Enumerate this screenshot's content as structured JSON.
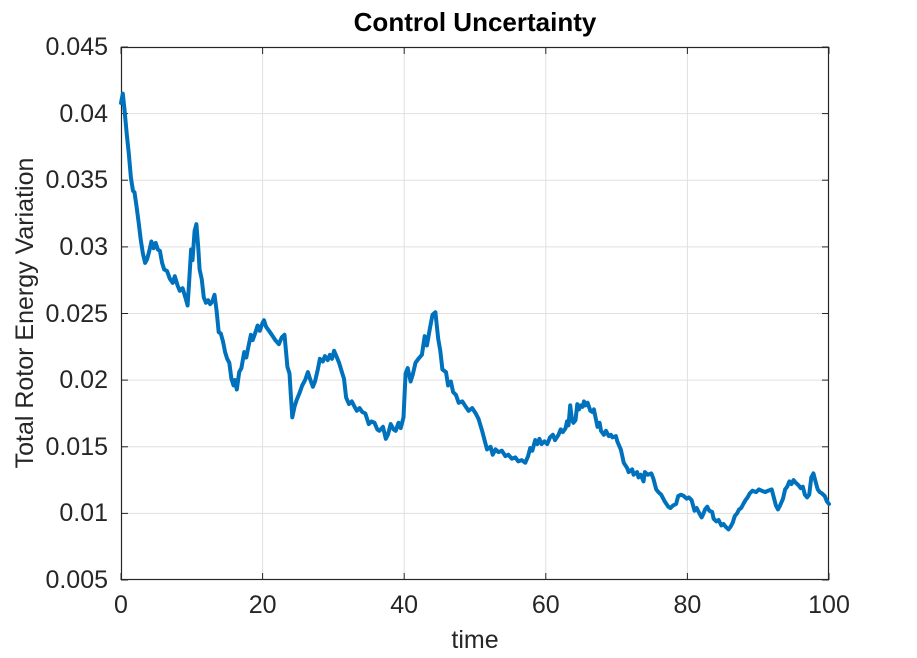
{
  "chart_data": {
    "type": "line",
    "title": "Control Uncertainty",
    "xlabel": "time",
    "ylabel": "Total Rotor Energy Variation",
    "xlim": [
      0,
      100
    ],
    "ylim": [
      0.005,
      0.045
    ],
    "xticks": [
      0,
      20,
      40,
      60,
      80,
      100
    ],
    "xtick_labels": [
      "0",
      "20",
      "40",
      "60",
      "80",
      "100"
    ],
    "yticks": [
      0.005,
      0.01,
      0.015,
      0.02,
      0.025,
      0.03,
      0.035,
      0.04,
      0.045
    ],
    "ytick_labels": [
      "0.005",
      "0.01",
      "0.015",
      "0.02",
      "0.025",
      "0.03",
      "0.035",
      "0.04",
      "0.045"
    ],
    "grid": true,
    "legend": "none",
    "line_color": "#0072BD",
    "grid_color": "#e0e0e0",
    "axes_color": "#262626",
    "x": [
      0,
      0.25,
      0.5,
      0.8,
      1.1,
      1.4,
      1.7,
      1.9,
      2.2,
      2.5,
      2.8,
      3.1,
      3.4,
      3.7,
      4.0,
      4.3,
      4.6,
      4.9,
      5.2,
      5.5,
      5.8,
      6.1,
      6.5,
      6.9,
      7.3,
      7.6,
      8.0,
      8.3,
      8.7,
      9.1,
      9.4,
      9.6,
      9.9,
      10.1,
      10.4,
      10.65,
      10.9,
      11.1,
      11.4,
      11.7,
      12.0,
      12.3,
      12.6,
      12.9,
      13.2,
      13.5,
      13.8,
      14.1,
      14.4,
      14.7,
      15.0,
      15.3,
      15.6,
      15.9,
      16.1,
      16.35,
      16.7,
      17.0,
      17.4,
      17.7,
      17.95,
      18.35,
      18.6,
      19.0,
      19.3,
      19.6,
      20.0,
      20.2,
      20.5,
      20.9,
      21.3,
      21.8,
      22.3,
      22.7,
      23.1,
      23.5,
      23.8,
      24.0,
      24.2,
      24.5,
      24.8,
      25.2,
      25.6,
      26.0,
      26.4,
      26.7,
      27.1,
      27.4,
      27.8,
      28.1,
      28.5,
      28.8,
      29.2,
      29.5,
      29.8,
      30.1,
      30.5,
      30.8,
      31.2,
      31.5,
      31.8,
      32.2,
      32.6,
      33.0,
      33.3,
      33.7,
      34.1,
      34.5,
      35.0,
      35.4,
      35.8,
      36.2,
      36.5,
      37.0,
      37.4,
      37.7,
      38.1,
      38.5,
      38.8,
      39.2,
      39.5,
      39.9,
      40.2,
      40.5,
      40.9,
      41.2,
      41.6,
      42.0,
      42.5,
      42.9,
      43.2,
      43.6,
      44.0,
      44.4,
      44.8,
      45.1,
      45.4,
      45.9,
      46.2,
      46.6,
      46.9,
      47.3,
      47.7,
      48.2,
      48.7,
      49.1,
      49.6,
      50.1,
      50.5,
      51.0,
      51.3,
      51.7,
      52.2,
      52.5,
      52.9,
      53.3,
      53.8,
      54.3,
      54.7,
      55.2,
      55.7,
      56.1,
      56.6,
      57.1,
      57.5,
      57.8,
      58.1,
      58.5,
      58.8,
      59.1,
      59.4,
      59.8,
      60.2,
      60.6,
      61.0,
      61.3,
      61.8,
      62.1,
      62.4,
      62.8,
      63.0,
      63.2,
      63.45,
      63.7,
      63.9,
      64.2,
      64.45,
      64.7,
      64.9,
      65.2,
      65.4,
      65.6,
      65.9,
      66.3,
      66.6,
      66.8,
      67.1,
      67.3,
      67.6,
      67.8,
      68.2,
      68.5,
      68.9,
      69.2,
      69.4,
      69.9,
      70.1,
      70.6,
      70.8,
      71.0,
      71.5,
      71.7,
      72.2,
      72.4,
      72.9,
      73.1,
      73.4,
      73.8,
      74.0,
      74.4,
      74.9,
      75.2,
      75.6,
      75.9,
      76.3,
      76.8,
      77.3,
      77.6,
      78.0,
      78.4,
      78.7,
      79.1,
      79.5,
      79.9,
      80.2,
      80.6,
      81.0,
      81.3,
      81.7,
      82.0,
      82.2,
      82.5,
      82.8,
      83.1,
      83.5,
      83.7,
      84.1,
      84.4,
      84.8,
      85.1,
      85.4,
      85.8,
      86.1,
      86.4,
      86.7,
      87.0,
      87.3,
      87.6,
      87.9,
      88.2,
      88.5,
      88.8,
      89.2,
      89.7,
      90.1,
      90.5,
      91.0,
      91.4,
      91.9,
      92.2,
      92.5,
      92.8,
      93.1,
      93.5,
      93.8,
      94.1,
      94.4,
      94.7,
      95.0,
      95.3,
      95.7,
      96.0,
      96.3,
      96.6,
      96.9,
      97.2,
      97.5,
      97.8,
      98.1,
      98.4,
      98.7,
      99.0,
      99.4,
      99.7,
      100
    ],
    "y": [
      0.0408,
      0.0415,
      0.0403,
      0.0385,
      0.037,
      0.0352,
      0.0342,
      0.0341,
      0.033,
      0.0318,
      0.0305,
      0.0295,
      0.0288,
      0.0291,
      0.0297,
      0.0304,
      0.0299,
      0.0303,
      0.0298,
      0.0297,
      0.0288,
      0.0283,
      0.0282,
      0.0276,
      0.0273,
      0.0278,
      0.0271,
      0.0267,
      0.0269,
      0.0262,
      0.0256,
      0.0272,
      0.0298,
      0.029,
      0.0312,
      0.0317,
      0.03,
      0.0283,
      0.0276,
      0.0262,
      0.0258,
      0.026,
      0.0257,
      0.0259,
      0.0264,
      0.0252,
      0.0236,
      0.0235,
      0.0229,
      0.0221,
      0.0216,
      0.0213,
      0.0201,
      0.0196,
      0.02,
      0.0193,
      0.0206,
      0.0209,
      0.0221,
      0.0217,
      0.0224,
      0.0234,
      0.023,
      0.0236,
      0.0241,
      0.0237,
      0.0243,
      0.0245,
      0.024,
      0.0237,
      0.0234,
      0.023,
      0.0227,
      0.0232,
      0.0234,
      0.021,
      0.0205,
      0.0188,
      0.0172,
      0.018,
      0.0185,
      0.019,
      0.0196,
      0.02,
      0.0206,
      0.0201,
      0.0195,
      0.0199,
      0.0208,
      0.0216,
      0.0214,
      0.0218,
      0.0215,
      0.0219,
      0.0216,
      0.0222,
      0.0217,
      0.0213,
      0.0206,
      0.0201,
      0.0187,
      0.0182,
      0.0184,
      0.018,
      0.0177,
      0.0179,
      0.0176,
      0.0175,
      0.0167,
      0.0169,
      0.0168,
      0.0163,
      0.0162,
      0.0165,
      0.0156,
      0.0159,
      0.0167,
      0.0163,
      0.0162,
      0.0168,
      0.0164,
      0.0172,
      0.0205,
      0.0209,
      0.0199,
      0.0204,
      0.0213,
      0.0216,
      0.0219,
      0.0233,
      0.0226,
      0.0238,
      0.0249,
      0.0251,
      0.0231,
      0.0222,
      0.0208,
      0.0206,
      0.0196,
      0.0199,
      0.0191,
      0.0189,
      0.0183,
      0.0184,
      0.018,
      0.0177,
      0.0179,
      0.0175,
      0.0171,
      0.0162,
      0.0156,
      0.0148,
      0.015,
      0.0144,
      0.0148,
      0.0146,
      0.0147,
      0.0143,
      0.0144,
      0.0141,
      0.0142,
      0.0139,
      0.014,
      0.0138,
      0.0143,
      0.0149,
      0.0147,
      0.0155,
      0.0152,
      0.0156,
      0.0152,
      0.0154,
      0.0152,
      0.0157,
      0.0159,
      0.0155,
      0.0159,
      0.0163,
      0.0161,
      0.0164,
      0.0169,
      0.0166,
      0.0181,
      0.017,
      0.0168,
      0.017,
      0.0182,
      0.0178,
      0.0181,
      0.018,
      0.0184,
      0.0181,
      0.0183,
      0.0177,
      0.0176,
      0.0178,
      0.017,
      0.0165,
      0.0168,
      0.0162,
      0.0159,
      0.0162,
      0.0158,
      0.0159,
      0.0157,
      0.0158,
      0.0154,
      0.0148,
      0.0143,
      0.0138,
      0.0134,
      0.0131,
      0.0133,
      0.0129,
      0.0131,
      0.0127,
      0.0129,
      0.0124,
      0.0131,
      0.0129,
      0.013,
      0.0126,
      0.0118,
      0.0116,
      0.0114,
      0.0109,
      0.0105,
      0.0104,
      0.0106,
      0.0107,
      0.0113,
      0.0114,
      0.0113,
      0.0111,
      0.0112,
      0.011,
      0.0102,
      0.0104,
      0.01,
      0.0097,
      0.0099,
      0.0103,
      0.0105,
      0.0102,
      0.0101,
      0.0096,
      0.0094,
      0.0095,
      0.0091,
      0.0092,
      0.009,
      0.0088,
      0.009,
      0.0093,
      0.0098,
      0.01,
      0.0103,
      0.0104,
      0.0107,
      0.011,
      0.0112,
      0.0115,
      0.0117,
      0.0116,
      0.0118,
      0.0117,
      0.0116,
      0.0117,
      0.0118,
      0.0112,
      0.0106,
      0.0103,
      0.0106,
      0.0111,
      0.0118,
      0.012,
      0.0124,
      0.0122,
      0.0125,
      0.0123,
      0.0121,
      0.0119,
      0.012,
      0.0114,
      0.0112,
      0.0114,
      0.0127,
      0.013,
      0.0124,
      0.0118,
      0.0116,
      0.0115,
      0.0113,
      0.0109,
      0.0107
    ]
  }
}
